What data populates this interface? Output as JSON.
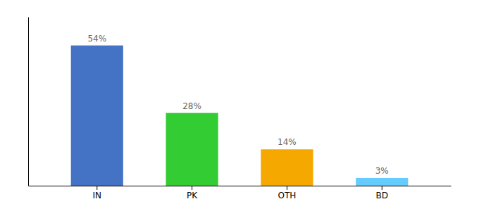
{
  "chart_data": {
    "type": "bar",
    "categories": [
      "IN",
      "PK",
      "OTH",
      "BD"
    ],
    "values": [
      54,
      28,
      14,
      3
    ],
    "value_labels": [
      "54%",
      "28%",
      "14%",
      "3%"
    ],
    "colors": [
      "#4472c4",
      "#33cc33",
      "#f5a800",
      "#66ccff"
    ],
    "ylim": [
      0,
      65
    ],
    "data_labels": true,
    "tick_labels": "x",
    "grid": false
  }
}
